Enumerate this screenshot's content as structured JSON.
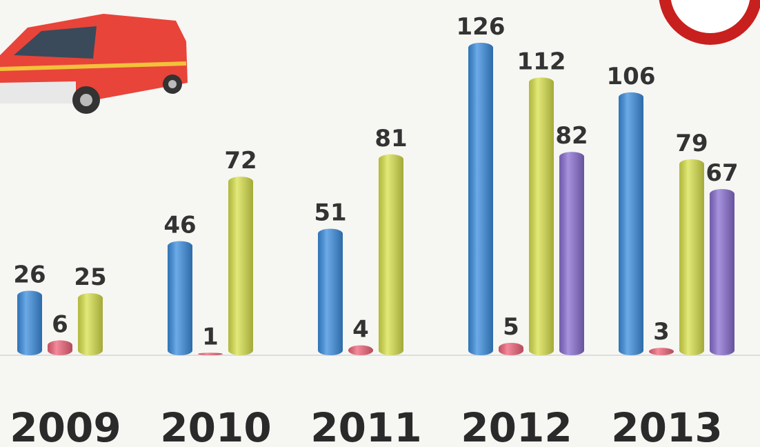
{
  "chart_data": {
    "type": "bar",
    "categories": [
      "2009",
      "2010",
      "2011",
      "2012",
      "2013"
    ],
    "series": [
      {
        "color": "#3b8ee0",
        "values": [
          26,
          46,
          51,
          126,
          106
        ]
      },
      {
        "color": "#f0647a",
        "values": [
          6,
          1,
          4,
          5,
          3
        ]
      },
      {
        "color": "#d9e24c",
        "values": [
          25,
          72,
          81,
          112,
          79
        ]
      },
      {
        "color": "#8a6fd2",
        "values": [
          null,
          null,
          null,
          82,
          67
        ]
      }
    ]
  }
}
